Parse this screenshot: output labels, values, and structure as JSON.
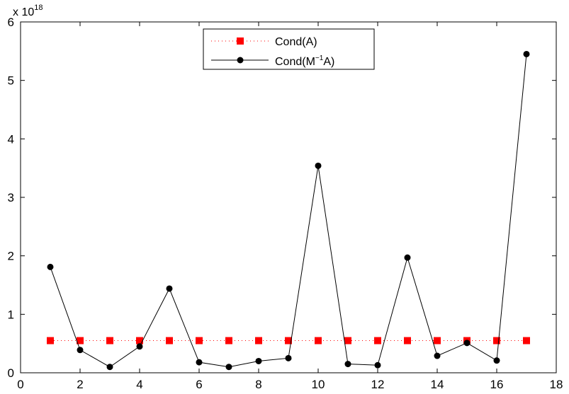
{
  "chart_data": {
    "type": "line",
    "title": "",
    "xlabel": "",
    "ylabel": "",
    "xlim": [
      0,
      18
    ],
    "ylim": [
      0,
      6
    ],
    "x_ticks": [
      "0",
      "2",
      "4",
      "6",
      "8",
      "10",
      "12",
      "14",
      "16",
      "18"
    ],
    "y_ticks": [
      "0",
      "1",
      "2",
      "3",
      "4",
      "5",
      "6"
    ],
    "y_multiplier": {
      "prefix": "x 10",
      "exponent": "18"
    },
    "legend": {
      "placement": "top-center"
    },
    "grid": false,
    "x": [
      1,
      2,
      3,
      4,
      5,
      6,
      7,
      8,
      9,
      10,
      11,
      12,
      13,
      14,
      15,
      16,
      17
    ],
    "series": [
      {
        "name": "Cond(A)",
        "legend_label": {
          "main": "Cond(A)"
        },
        "style": "dotted-square",
        "color": "#ff0000",
        "values": [
          0.55,
          0.55,
          0.55,
          0.55,
          0.55,
          0.55,
          0.55,
          0.55,
          0.55,
          0.55,
          0.55,
          0.55,
          0.55,
          0.55,
          0.55,
          0.55,
          0.55
        ]
      },
      {
        "name": "Cond(M−1A)",
        "legend_label": {
          "pre": "Cond(M",
          "sup": "−1",
          "post": "A)"
        },
        "style": "solid-circle",
        "color": "#000000",
        "values": [
          1.81,
          0.39,
          0.1,
          0.45,
          1.44,
          0.18,
          0.1,
          0.2,
          0.25,
          3.54,
          0.15,
          0.13,
          1.97,
          0.29,
          0.51,
          0.21,
          5.45
        ]
      }
    ]
  }
}
